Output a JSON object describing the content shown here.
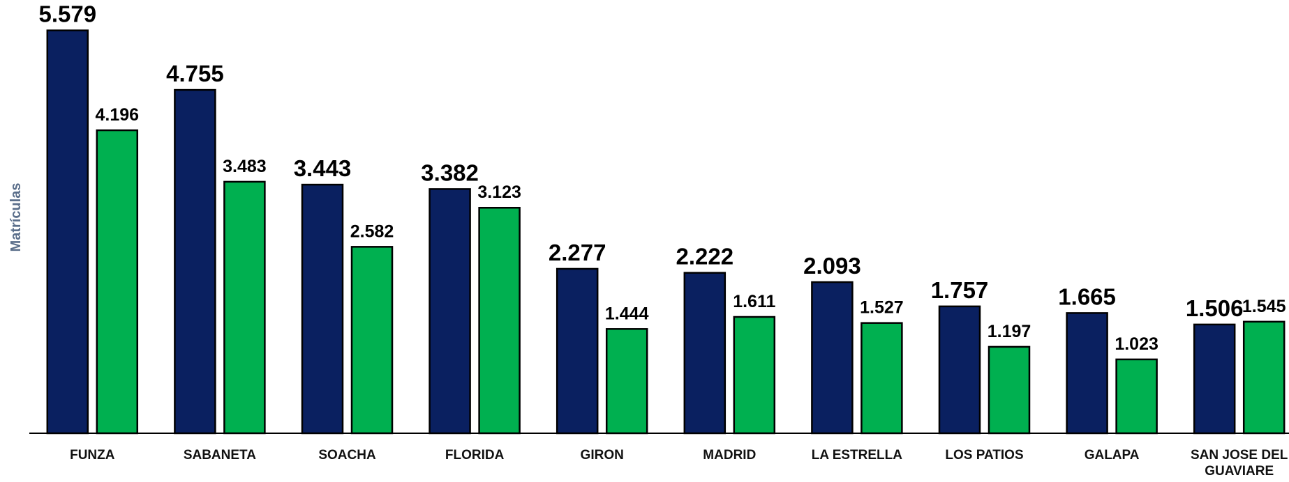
{
  "chart_data": {
    "type": "bar",
    "y_label": "Matrículas",
    "categories": [
      "FUNZA",
      "SABANETA",
      "SOACHA",
      "FLORIDA",
      "GIRON",
      "MADRID",
      "LA ESTRELLA",
      "LOS PATIOS",
      "GALAPA",
      "SAN JOSE DEL GUAVIARE"
    ],
    "series": [
      {
        "color": "#0a2060",
        "values": [
          5579,
          4755,
          3443,
          3382,
          2277,
          2222,
          2093,
          1757,
          1665,
          1506
        ],
        "value_labels": [
          "5.579",
          "4.755",
          "3.443",
          "3.382",
          "2.277",
          "2.222",
          "2.093",
          "1.757",
          "1.665",
          "1.506"
        ]
      },
      {
        "color": "#00b050",
        "values": [
          4196,
          3483,
          2582,
          3123,
          1444,
          1611,
          1527,
          1197,
          1023,
          1545
        ],
        "value_labels": [
          "4.196",
          "3.483",
          "2.582",
          "3.123",
          "1.444",
          "1.611",
          "1.527",
          "1.197",
          "1.023",
          "1.545"
        ]
      }
    ],
    "ylim": [
      0,
      6000
    ]
  }
}
